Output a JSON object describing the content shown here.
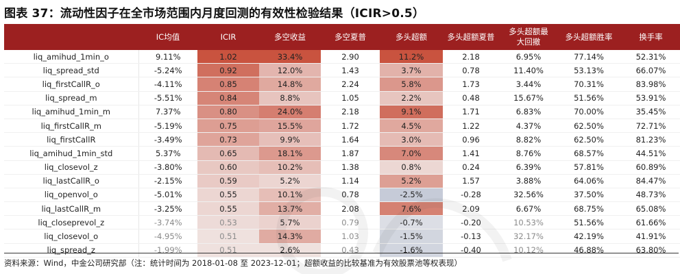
{
  "title": "图表 37：流动性因子在全市场范围内月度回测的有效性检验结果（ICIR>0.5）",
  "headers": {
    "ic_mean": "IC均值",
    "icir": "ICIR",
    "ls_return": "多空收益",
    "ls_sharpe": "多空夏普",
    "long_excess": "多头超额",
    "long_excess_sharpe": "多头超额夏普",
    "long_excess_maxdd_1": "多头超额最",
    "long_excess_maxdd_2": "大回撤",
    "long_excess_winrate": "多头超额胜率",
    "turnover": "换手率"
  },
  "rows": [
    {
      "name": "liq_amihud_1min_o",
      "ic": "9.11%",
      "icir": "1.02",
      "ls": "33.4%",
      "sharpe": "2.90",
      "excess": "11.2%",
      "ex_sharpe": "2.18",
      "maxdd": "6.95%",
      "win": "77.14%",
      "turn": "52.31%"
    },
    {
      "name": "liq_spread_std",
      "ic": "-5.24%",
      "icir": "0.92",
      "ls": "12.0%",
      "sharpe": "1.43",
      "excess": "3.7%",
      "ex_sharpe": "0.78",
      "maxdd": "11.40%",
      "win": "53.13%",
      "turn": "66.07%"
    },
    {
      "name": "liq_firstCallR_o",
      "ic": "-4.11%",
      "icir": "0.85",
      "ls": "14.8%",
      "sharpe": "2.24",
      "excess": "5.8%",
      "ex_sharpe": "1.73",
      "maxdd": "3.44%",
      "win": "70.31%",
      "turn": "83.98%"
    },
    {
      "name": "liq_spread_m",
      "ic": "-5.51%",
      "icir": "0.84",
      "ls": "8.8%",
      "sharpe": "1.05",
      "excess": "2.2%",
      "ex_sharpe": "0.48",
      "maxdd": "15.67%",
      "win": "51.56%",
      "turn": "53.91%"
    },
    {
      "name": "liq_amihud_1min_m",
      "ic": "7.37%",
      "icir": "0.80",
      "ls": "24.0%",
      "sharpe": "2.18",
      "excess": "9.1%",
      "ex_sharpe": "1.71",
      "maxdd": "6.83%",
      "win": "70.00%",
      "turn": "35.45%"
    },
    {
      "name": "liq_firstCallR_m",
      "ic": "-5.19%",
      "icir": "0.75",
      "ls": "15.5%",
      "sharpe": "1.72",
      "excess": "4.5%",
      "ex_sharpe": "1.22",
      "maxdd": "4.37%",
      "win": "62.50%",
      "turn": "72.71%"
    },
    {
      "name": "liq_firstCallR",
      "ic": "-3.49%",
      "icir": "0.73",
      "ls": "9.9%",
      "sharpe": "1.64",
      "excess": "3.0%",
      "ex_sharpe": "0.96",
      "maxdd": "8.82%",
      "win": "62.50%",
      "turn": "81.23%"
    },
    {
      "name": "liq_amihud_1min_std",
      "ic": "5.37%",
      "icir": "0.65",
      "ls": "18.1%",
      "sharpe": "1.87",
      "excess": "7.0%",
      "ex_sharpe": "1.41",
      "maxdd": "8.76%",
      "win": "68.57%",
      "turn": "44.51%"
    },
    {
      "name": "liq_closevol_z",
      "ic": "-3.80%",
      "icir": "0.60",
      "ls": "10.2%",
      "sharpe": "1.38",
      "excess": "0.8%",
      "ex_sharpe": "0.24",
      "maxdd": "6.39%",
      "win": "57.81%",
      "turn": "60.89%"
    },
    {
      "name": "liq_lastCallR_o",
      "ic": "-2.15%",
      "icir": "0.59",
      "ls": "5.2%",
      "sharpe": "1.14",
      "excess": "5.2%",
      "ex_sharpe": "1.57",
      "maxdd": "3.88%",
      "win": "64.06%",
      "turn": "84.47%"
    },
    {
      "name": "liq_openvol_o",
      "ic": "-5.01%",
      "icir": "0.55",
      "ls": "10.1%",
      "sharpe": "0.78",
      "excess": "-2.5%",
      "ex_sharpe": "-0.28",
      "maxdd": "32.56%",
      "win": "37.50%",
      "turn": "48.73%"
    },
    {
      "name": "liq_lastCallR_m",
      "ic": "-3.25%",
      "icir": "0.55",
      "ls": "13.7%",
      "sharpe": "2.08",
      "excess": "7.6%",
      "ex_sharpe": "2.09",
      "maxdd": "6.67%",
      "win": "68.75%",
      "turn": "65.08%"
    },
    {
      "name": "liq_closeprevol_z",
      "ic": "-3.74%",
      "icir": "0.53",
      "ls": "5.7%",
      "sharpe": "0.79",
      "excess": "-0.7%",
      "ex_sharpe": "-0.20",
      "maxdd": "10.53%",
      "win": "51.56%",
      "turn": "61.66%"
    },
    {
      "name": "liq_closevol_o",
      "ic": "-4.95%",
      "icir": "0.51",
      "ls": "14.3%",
      "sharpe": "1.03",
      "excess": "-1.5%",
      "ex_sharpe": "-0.13",
      "maxdd": "32.17%",
      "win": "42.19%",
      "turn": "41.91%"
    },
    {
      "name": "liq_spread_z",
      "ic": "-1.99%",
      "icir": "0.51",
      "ls": "2.6%",
      "sharpe": "0.43",
      "excess": "-1.6%",
      "ex_sharpe": "-0.40",
      "maxdd": "10.12%",
      "win": "46.88%",
      "turn": "63.80%"
    }
  ],
  "muted_rows": [
    12,
    13,
    14
  ],
  "colors": {
    "header_bg": "#9c2020",
    "hot_max": "#c9533f",
    "neutral": "#f4f4f4",
    "cool_min": "#c6cbd8"
  },
  "footnote": "资料来源：Wind，中金公司研究部（注：统计时间为 2018-01-08 至 2023-12-01；超额收益的比较基准为有效股票池等权表现）"
}
